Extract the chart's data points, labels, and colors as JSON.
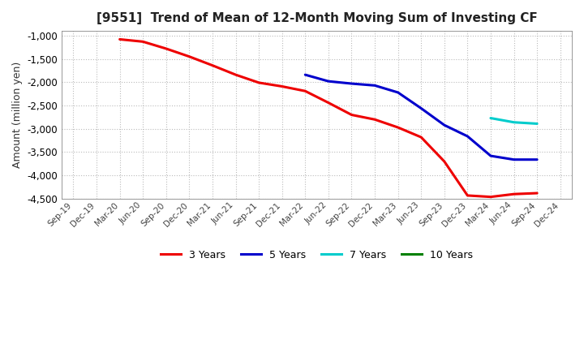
{
  "title": "[9551]  Trend of Mean of 12-Month Moving Sum of Investing CF",
  "ylabel": "Amount (million yen)",
  "ylim": [
    -4500,
    -900
  ],
  "yticks": [
    -4500,
    -4000,
    -3500,
    -3000,
    -2500,
    -2000,
    -1500,
    -1000
  ],
  "background_color": "#ffffff",
  "grid_color": "#bbbbbb",
  "series": {
    "3years": {
      "color": "#ee0000",
      "x": [
        "Mar-20",
        "Jun-20",
        "Sep-20",
        "Dec-20",
        "Mar-21",
        "Jun-21",
        "Sep-21",
        "Dec-21",
        "Mar-22",
        "Jun-22",
        "Sep-22",
        "Dec-22",
        "Mar-23",
        "Jun-23",
        "Sep-23",
        "Dec-23",
        "Mar-24",
        "Jun-24",
        "Sep-24"
      ],
      "y": [
        -1080,
        -1130,
        -1280,
        -1450,
        -1640,
        -1840,
        -2010,
        -2090,
        -2190,
        -2440,
        -2700,
        -2800,
        -2970,
        -3180,
        -3700,
        -4430,
        -4460,
        -4400,
        -4380
      ]
    },
    "5years": {
      "color": "#0000cc",
      "x": [
        "Mar-22",
        "Jun-22",
        "Sep-22",
        "Dec-22",
        "Mar-23",
        "Jun-23",
        "Sep-23",
        "Dec-23",
        "Mar-24",
        "Jun-24",
        "Sep-24"
      ],
      "y": [
        -1840,
        -1980,
        -2030,
        -2070,
        -2220,
        -2560,
        -2920,
        -3160,
        -3580,
        -3660,
        -3660
      ]
    },
    "7years": {
      "color": "#00cccc",
      "x": [
        "Mar-24",
        "Jun-24",
        "Sep-24"
      ],
      "y": [
        -2770,
        -2860,
        -2890
      ]
    },
    "10years": {
      "color": "#008000",
      "x": [],
      "y": []
    }
  },
  "x_labels": [
    "Sep-19",
    "Dec-19",
    "Mar-20",
    "Jun-20",
    "Sep-20",
    "Dec-20",
    "Mar-21",
    "Jun-21",
    "Sep-21",
    "Dec-21",
    "Mar-22",
    "Jun-22",
    "Sep-22",
    "Dec-22",
    "Mar-23",
    "Jun-23",
    "Sep-23",
    "Dec-23",
    "Mar-24",
    "Jun-24",
    "Sep-24",
    "Dec-24"
  ],
  "legend": [
    {
      "label": "3 Years",
      "color": "#ee0000"
    },
    {
      "label": "5 Years",
      "color": "#0000cc"
    },
    {
      "label": "7 Years",
      "color": "#00cccc"
    },
    {
      "label": "10 Years",
      "color": "#008000"
    }
  ]
}
